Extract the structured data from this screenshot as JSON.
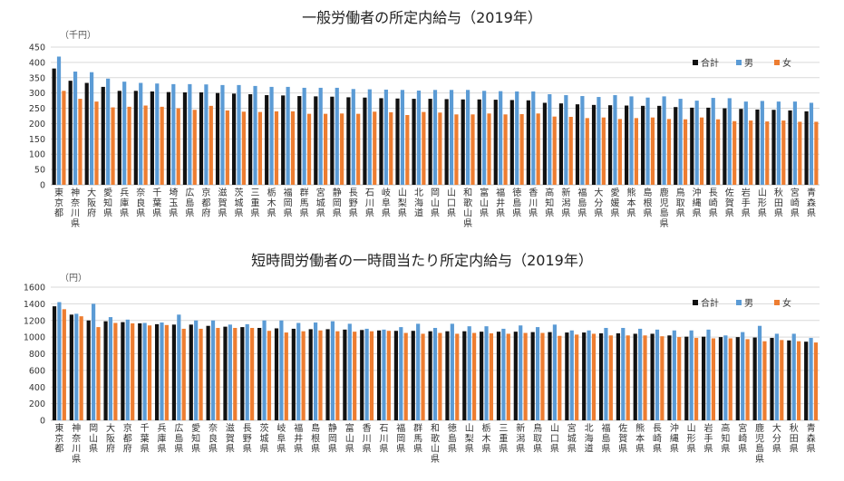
{
  "colors": {
    "total": "#111111",
    "male": "#5B9BD5",
    "female": "#ED7D31",
    "grid": "#d9d9d9"
  },
  "chart_data": [
    {
      "type": "bar",
      "title": "一般労働者の所定内給与（2019年）",
      "unit": "（千円）",
      "ylim": [
        0,
        450
      ],
      "yticks": [
        0,
        50,
        100,
        150,
        200,
        250,
        300,
        350,
        400,
        450
      ],
      "legend_position": "top-right",
      "categories": [
        "東京都",
        "神奈川県",
        "大阪府",
        "愛知県",
        "兵庫県",
        "奈良県",
        "千葉県",
        "埼玉県",
        "広島県",
        "京都府",
        "滋賀県",
        "茨城県",
        "三重県",
        "栃木県",
        "福岡県",
        "群馬県",
        "宮城県",
        "静岡県",
        "長野県",
        "石川県",
        "岐阜県",
        "山梨県",
        "北海道",
        "岡山県",
        "山口県",
        "和歌山県",
        "富山県",
        "福井県",
        "徳島県",
        "香川県",
        "高知県",
        "新潟県",
        "福島県",
        "大分県",
        "愛媛県",
        "熊本県",
        "島根県",
        "鹿児島県",
        "鳥取県",
        "沖縄県",
        "長崎県",
        "佐賀県",
        "岩手県",
        "山形県",
        "秋田県",
        "宮崎県",
        "青森県"
      ],
      "series": [
        {
          "name": "合計",
          "values": [
            380,
            340,
            333,
            320,
            307,
            307,
            305,
            303,
            302,
            302,
            300,
            298,
            296,
            293,
            292,
            290,
            289,
            288,
            286,
            285,
            283,
            282,
            281,
            281,
            280,
            279,
            279,
            278,
            277,
            276,
            268,
            266,
            263,
            261,
            260,
            259,
            258,
            258,
            254,
            252,
            252,
            250,
            248,
            246,
            245,
            243,
            240
          ]
        },
        {
          "name": "男",
          "values": [
            419,
            370,
            368,
            347,
            337,
            333,
            331,
            329,
            329,
            328,
            326,
            326,
            323,
            320,
            320,
            317,
            317,
            317,
            313,
            312,
            311,
            310,
            308,
            310,
            310,
            310,
            307,
            306,
            305,
            305,
            296,
            293,
            290,
            287,
            293,
            289,
            285,
            289,
            281,
            275,
            284,
            283,
            272,
            274,
            272,
            272,
            268
          ]
        },
        {
          "name": "女",
          "values": [
            307,
            281,
            272,
            253,
            255,
            259,
            255,
            250,
            245,
            258,
            243,
            239,
            238,
            240,
            240,
            232,
            232,
            233,
            232,
            239,
            237,
            228,
            238,
            236,
            230,
            230,
            233,
            230,
            231,
            233,
            223,
            222,
            218,
            220,
            215,
            218,
            220,
            215,
            214,
            220,
            214,
            208,
            210,
            207,
            210,
            206,
            206
          ]
        }
      ]
    },
    {
      "type": "bar",
      "title": "短時間労働者の一時間当たり所定内給与（2019年）",
      "unit": "（円）",
      "ylim": [
        0,
        1600
      ],
      "yticks": [
        0,
        200,
        400,
        600,
        800,
        1000,
        1200,
        1400,
        1600
      ],
      "legend_position": "top-right",
      "categories": [
        "東京都",
        "神奈川県",
        "岡山県",
        "大阪府",
        "京都府",
        "千葉県",
        "兵庫県",
        "広島県",
        "愛知県",
        "奈良県",
        "滋賀県",
        "長野県",
        "茨城県",
        "岐阜県",
        "福井県",
        "島根県",
        "静岡県",
        "富山県",
        "香川県",
        "石川県",
        "福岡県",
        "群馬県",
        "和歌山県",
        "徳島県",
        "山梨県",
        "栃木県",
        "三重県",
        "新潟県",
        "鳥取県",
        "山口県",
        "宮城県",
        "北海道",
        "福島県",
        "佐賀県",
        "熊本県",
        "長崎県",
        "沖縄県",
        "山形県",
        "岩手県",
        "高知県",
        "宮崎県",
        "鹿児島県",
        "大分県",
        "秋田県",
        "青森県"
      ],
      "series": [
        {
          "name": "合計",
          "values": [
            1370,
            1270,
            1200,
            1190,
            1180,
            1165,
            1155,
            1150,
            1150,
            1135,
            1125,
            1120,
            1110,
            1105,
            1100,
            1095,
            1095,
            1090,
            1085,
            1080,
            1075,
            1075,
            1070,
            1070,
            1070,
            1065,
            1065,
            1065,
            1060,
            1060,
            1055,
            1055,
            1045,
            1045,
            1040,
            1040,
            1020,
            1005,
            1005,
            1000,
            1000,
            995,
            990,
            960,
            945
          ]
        },
        {
          "name": "男",
          "values": [
            1420,
            1280,
            1400,
            1240,
            1210,
            1170,
            1175,
            1270,
            1200,
            1200,
            1150,
            1155,
            1200,
            1200,
            1170,
            1175,
            1190,
            1160,
            1100,
            1090,
            1120,
            1160,
            1110,
            1160,
            1130,
            1130,
            1100,
            1140,
            1120,
            1150,
            1080,
            1080,
            1110,
            1110,
            1100,
            1090,
            1080,
            1080,
            1090,
            1020,
            1060,
            1135,
            1040,
            1040,
            990
          ]
        },
        {
          "name": "女",
          "values": [
            1335,
            1250,
            1120,
            1170,
            1165,
            1140,
            1145,
            1100,
            1100,
            1110,
            1110,
            1110,
            1075,
            1055,
            1070,
            1080,
            1070,
            1065,
            1070,
            1075,
            1050,
            1040,
            1050,
            1040,
            1050,
            1045,
            1040,
            1050,
            1050,
            1015,
            1030,
            1040,
            1020,
            1020,
            1020,
            1010,
            1000,
            990,
            985,
            985,
            975,
            950,
            965,
            950,
            935
          ]
        }
      ]
    }
  ]
}
